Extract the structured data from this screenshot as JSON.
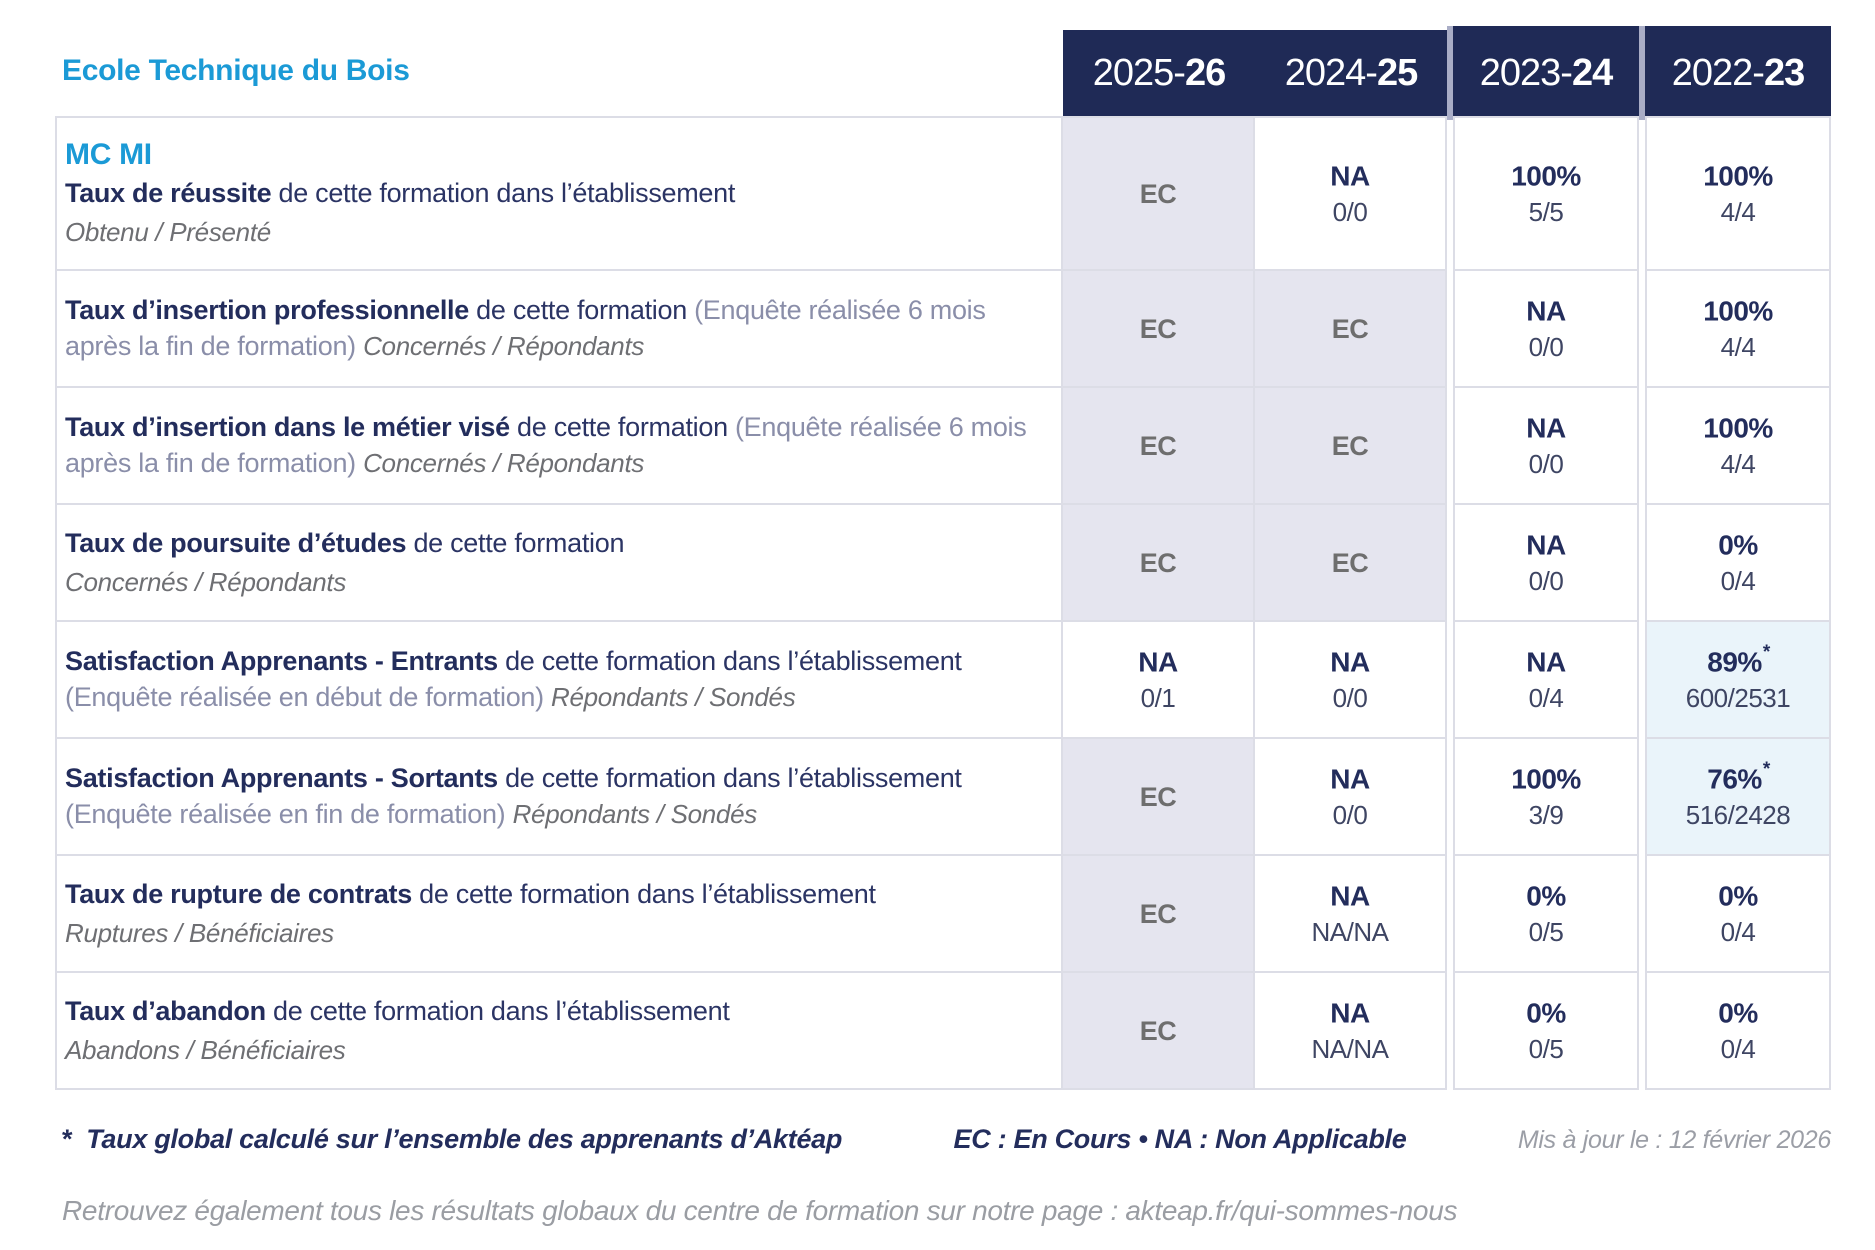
{
  "page": {
    "school_name": "Ecole Technique du Bois",
    "footnote_star": "*",
    "footnote": "Taux global calculé sur l’ensemble des apprenants d’Aktéap",
    "legend": "EC : En Cours  •  NA : Non Applicable",
    "updated": "Mis à jour le : 12 février 2026",
    "bottom_note": "Retrouvez également tous les résultats globaux du centre de formation sur notre page : akteap.fr/qui-sommes-nous"
  },
  "header": {
    "cols": [
      {
        "prefix": "2025-",
        "suffix": "26"
      },
      {
        "prefix": "2024-",
        "suffix": "25"
      },
      {
        "prefix": "2023-",
        "suffix": "24"
      },
      {
        "prefix": "2022-",
        "suffix": "23"
      }
    ]
  },
  "colors": {
    "accent_blue": "#1b9ad6",
    "navy": "#232d5c",
    "header_bg": "#1f2a56",
    "ec_cell_bg": "#e5e5ef",
    "highlight_cell_bg": "#eaf4fa",
    "cell_border": "#dcdde6",
    "slate_text": "#8a8ea9",
    "gray_italic": "#6e6f73"
  },
  "table": {
    "rows": [
      {
        "badge": "MC MI",
        "title": "Taux de réussite",
        "desc": " de cette formation dans l’établissement",
        "paren": "",
        "denom": "Obtenu / Présenté",
        "cells": [
          {
            "main": "EC",
            "ec": true
          },
          {
            "main": "NA",
            "sub": "0/0"
          },
          {
            "main": "100%",
            "sub": "5/5"
          },
          {
            "main": "100%",
            "sub": "4/4"
          }
        ]
      },
      {
        "title": "Taux d’insertion professionnelle",
        "desc": " de cette formation ",
        "paren": "(Enquête réalisée 6 mois après la fin de formation) ",
        "denom": "Concernés / Répondants",
        "cells": [
          {
            "main": "EC",
            "ec": true
          },
          {
            "main": "EC",
            "ec": true
          },
          {
            "main": "NA",
            "sub": "0/0"
          },
          {
            "main": "100%",
            "sub": "4/4"
          }
        ]
      },
      {
        "title": "Taux d’insertion dans le métier visé",
        "desc": " de cette formation ",
        "paren": "(Enquête réalisée 6 mois après la fin de formation) ",
        "denom": "Concernés / Répondants",
        "cells": [
          {
            "main": "EC",
            "ec": true
          },
          {
            "main": "EC",
            "ec": true
          },
          {
            "main": "NA",
            "sub": "0/0"
          },
          {
            "main": "100%",
            "sub": "4/4"
          }
        ]
      },
      {
        "title": "Taux de poursuite d’études",
        "desc": " de cette formation",
        "paren": "",
        "denom": "Concernés / Répondants",
        "cells": [
          {
            "main": "EC",
            "ec": true
          },
          {
            "main": "EC",
            "ec": true
          },
          {
            "main": "NA",
            "sub": "0/0"
          },
          {
            "main": "0%",
            "sub": "0/4"
          }
        ]
      },
      {
        "title": "Satisfaction Apprenants - Entrants",
        "desc": " de cette formation dans l’établissement ",
        "paren": "(Enquête réalisée en début de formation) ",
        "denom": "Répondants / Sondés",
        "cells": [
          {
            "main": "NA",
            "sub": "0/1"
          },
          {
            "main": "NA",
            "sub": "0/0"
          },
          {
            "main": "NA",
            "sub": "0/4"
          },
          {
            "main": "89%",
            "star": "*",
            "sub": "600/2531",
            "hl": true
          }
        ]
      },
      {
        "title": "Satisfaction Apprenants - Sortants",
        "desc": " de cette formation dans l’établissement ",
        "paren": "(Enquête réalisée en fin de formation) ",
        "denom": "Répondants / Sondés",
        "cells": [
          {
            "main": "EC",
            "ec": true
          },
          {
            "main": "NA",
            "sub": "0/0"
          },
          {
            "main": "100%",
            "sub": "3/9"
          },
          {
            "main": "76%",
            "star": "*",
            "sub": "516/2428",
            "hl": true
          }
        ]
      },
      {
        "title": "Taux de rupture de contrats",
        "desc": " de cette formation dans l’établissement",
        "paren": "",
        "denom": "Ruptures / Bénéficiaires",
        "cells": [
          {
            "main": "EC",
            "ec": true
          },
          {
            "main": "NA",
            "sub": "NA/NA"
          },
          {
            "main": "0%",
            "sub": "0/5"
          },
          {
            "main": "0%",
            "sub": "0/4"
          }
        ]
      },
      {
        "title": "Taux d’abandon",
        "desc": " de cette formation dans l’établissement",
        "paren": "",
        "denom": "Abandons / Bénéficiaires",
        "cells": [
          {
            "main": "EC",
            "ec": true
          },
          {
            "main": "NA",
            "sub": "NA/NA"
          },
          {
            "main": "0%",
            "sub": "0/5"
          },
          {
            "main": "0%",
            "sub": "0/4"
          }
        ]
      }
    ]
  }
}
